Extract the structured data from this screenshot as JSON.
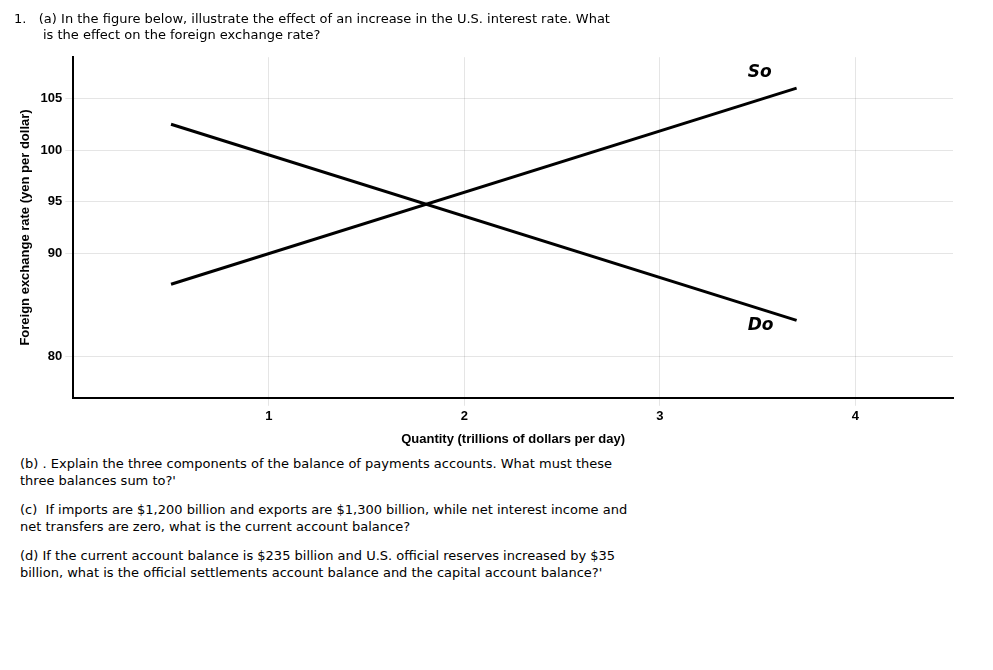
{
  "chart_data": {
    "type": "line",
    "title": [
      "1.   (a) In the figure below, illustrate the effect of an increase in the U.S. interest rate. What",
      "       is the effect on the foreign exchange rate?"
    ],
    "ylabel": "Foreign exchange rate (yen per dollar)",
    "xlabel": "Quantity (trillions of dollars per day)",
    "series": [
      {
        "x": [
          0.5,
          3.7
        ],
        "values": [
          87.0,
          106.0
        ],
        "color": "black"
      },
      {
        "x": [
          0.5,
          3.7
        ],
        "values": [
          102.5,
          83.5
        ],
        "color": "black"
      }
    ],
    "xlim": [
      0,
      4.5
    ],
    "xticks": [
      1,
      2,
      3,
      4
    ],
    "ylim": [
      76,
      109
    ],
    "yticks": [
      80,
      90,
      95,
      100,
      105
    ],
    "grid": true,
    "annotations": [
      {
        "text": "So",
        "x": 3.45,
        "y": 106.5
      },
      {
        "text": "Do",
        "x": 3.45,
        "y": 84.0
      }
    ],
    "footer": [
      "(b) . Explain the three components of the balance of payments accounts. What must these\nthree balances sum to?'",
      "(c)  If imports are $1,200 billion and exports are $1,300 billion, while net interest income and\nnet transfers are zero, what is the current account balance?",
      "(d) If the current account balance is $235 billion and U.S. official reserves increased by $35\nbillion, what is the official settlements account balance and the capital account balance?'"
    ]
  }
}
